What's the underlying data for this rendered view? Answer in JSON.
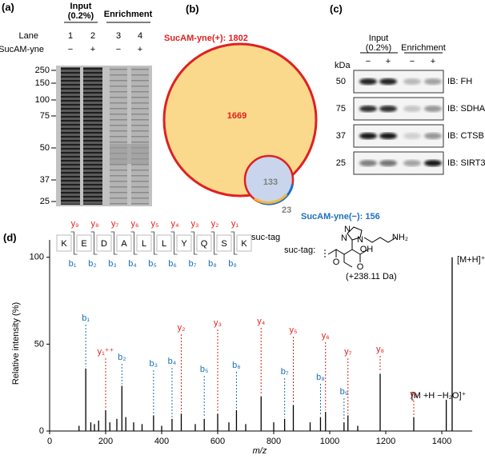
{
  "panel_labels": [
    "(a)",
    "(b)",
    "(c)",
    "(d)"
  ],
  "gel": {
    "input_label": [
      "Input",
      "(0.2%)"
    ],
    "enrichment_label": "Enrichment",
    "lane_label": "Lane",
    "lanes": [
      "1",
      "2",
      "3",
      "4"
    ],
    "probe_label": "SucAM-yne",
    "probe": [
      "−",
      "+",
      "−",
      "+"
    ],
    "markers": [
      "250",
      "150",
      "100",
      "75",
      "50",
      "37",
      "25"
    ]
  },
  "venn": {
    "plus_label": "SucAM-yne(+): 1802",
    "minus_label": "SucAM-yne(−): 156",
    "plus_only": "1669",
    "overlap": "133",
    "minus_only": "23"
  },
  "western": {
    "input_label": [
      "Input",
      "(0.2%)"
    ],
    "enrichment_label": "Enrichment",
    "kda": "kDa",
    "probe": [
      "−",
      "+",
      "−",
      "+"
    ],
    "blots": [
      {
        "marker": "50",
        "label": "IB: FH"
      },
      {
        "marker": "75",
        "label": "IB: SDHA"
      },
      {
        "marker": "37",
        "label": "IB: CTSB"
      },
      {
        "marker": "25",
        "label": "IB: SIRT3"
      }
    ]
  },
  "peptide": {
    "residues": [
      "K",
      "E",
      "D",
      "A",
      "L",
      "L",
      "Y",
      "Q",
      "S",
      "K"
    ],
    "modification": "suc-tag",
    "y_ions": [
      "y₉",
      "y₈",
      "y₇",
      "y₆",
      "y₅",
      "y₄",
      "y₃",
      "y₂",
      "y₁"
    ],
    "b_ions": [
      "b₁",
      "b₂",
      "b₃",
      "b₄",
      "b₅",
      "b₆",
      "b₇",
      "b₈",
      "b₉"
    ],
    "tag_label": "suc-tag:",
    "tag_atoms": [
      "N",
      "N",
      "N",
      "NH₂",
      "O",
      "OH",
      "O"
    ],
    "tag_mass": "(+238.11 Da)"
  },
  "chart_data": {
    "type": "spectrum",
    "ylabel": "Relative intensity (%)",
    "xlabel": "m/z",
    "xlim": [
      0,
      1500
    ],
    "ylim": [
      0,
      110
    ],
    "xticks": [
      0,
      200,
      400,
      600,
      800,
      1000,
      1200,
      1400
    ],
    "yticks": [
      0,
      50,
      100
    ],
    "x": [
      105,
      129,
      147,
      160,
      175,
      200,
      215,
      240,
      258,
      272,
      300,
      330,
      371,
      400,
      437,
      470,
      520,
      552,
      600,
      640,
      667,
      700,
      755,
      800,
      839,
      870,
      930,
      967,
      985,
      1051,
      1065,
      1100,
      1180,
      1300,
      1416,
      1437
    ],
    "values": [
      3,
      36,
      5,
      4,
      6,
      12,
      5,
      7,
      26,
      8,
      5,
      4,
      9,
      3,
      7,
      10,
      4,
      7,
      10,
      5,
      12,
      4,
      20,
      5,
      7,
      15,
      5,
      8,
      11,
      5,
      9,
      3,
      33,
      8,
      18,
      100
    ],
    "labels": [
      null,
      "b₁",
      null,
      null,
      null,
      "y₁⁺⁺",
      null,
      null,
      "b₂",
      null,
      null,
      null,
      "b₃",
      null,
      "b₄",
      "y₂",
      null,
      "b₅",
      "y₃",
      null,
      "b₆",
      null,
      "y₄",
      null,
      "b₇",
      "y₅",
      null,
      "b₈",
      "y₆",
      "b₉",
      "y₇",
      null,
      "y₈",
      "y₉",
      "[M +H −H₂O]⁺",
      "[M+H]⁺"
    ],
    "label_colors": [
      null,
      "#1a6fba",
      null,
      null,
      null,
      "#e3211c",
      null,
      null,
      "#1a6fba",
      null,
      null,
      null,
      "#1a6fba",
      null,
      "#1a6fba",
      "#e3211c",
      null,
      "#1a6fba",
      "#e3211c",
      null,
      "#1a6fba",
      null,
      "#e3211c",
      null,
      "#1a6fba",
      "#e3211c",
      null,
      "#1a6fba",
      "#e3211c",
      "#1a6fba",
      "#e3211c",
      null,
      "#e3211c",
      "#e3211c",
      "#000000",
      "#000000"
    ],
    "color": "#000000"
  }
}
